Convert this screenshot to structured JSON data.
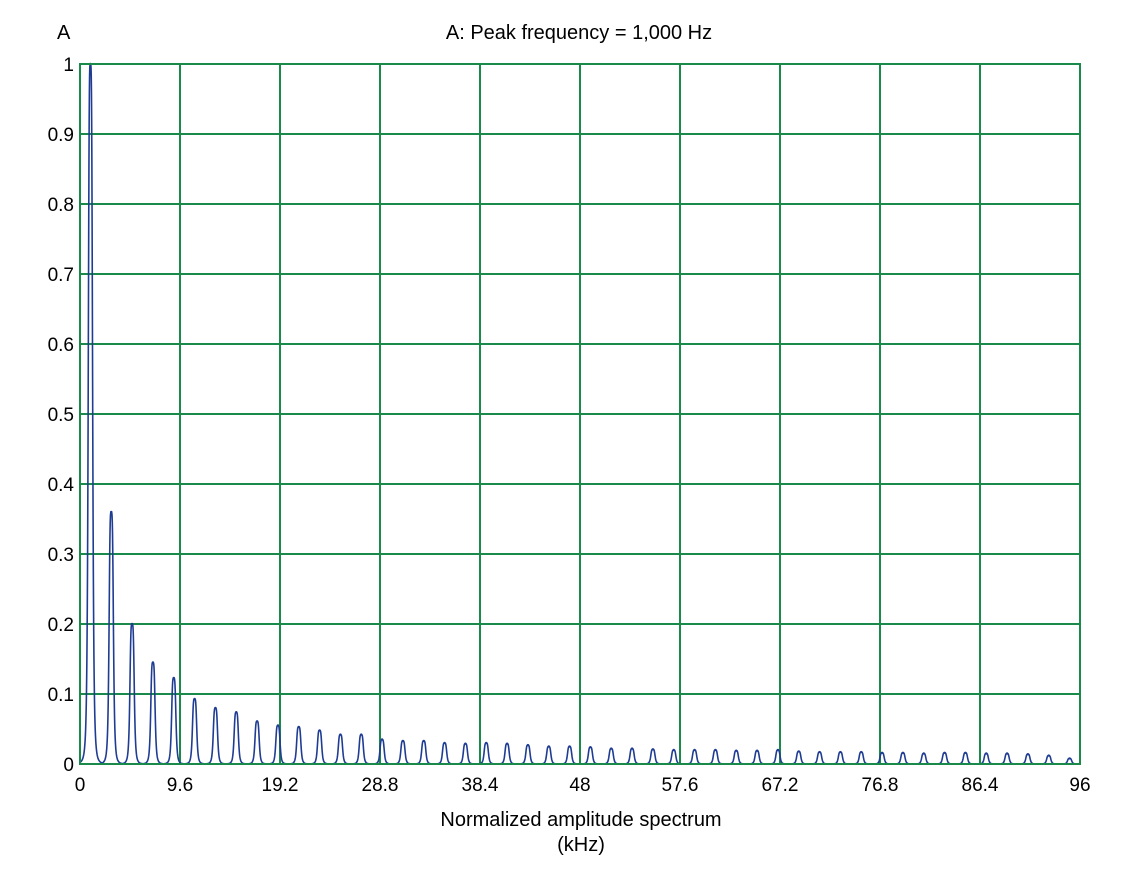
{
  "chart_data": {
    "type": "line",
    "title": "A: Peak frequency = 1,000 Hz",
    "panel_label": "A",
    "xlabel": "Normalized amplitude spectrum",
    "xlabel_unit": "(kHz)",
    "ylabel": "",
    "xlim": [
      0,
      96
    ],
    "ylim": [
      0,
      1
    ],
    "x_ticks": [
      "0",
      "9.6",
      "19.2",
      "28.8",
      "38.4",
      "48",
      "57.6",
      "67.2",
      "76.8",
      "86.4",
      "96"
    ],
    "y_ticks": [
      "0",
      "0.1",
      "0.2",
      "0.3",
      "0.4",
      "0.5",
      "0.6",
      "0.7",
      "0.8",
      "0.9",
      "1"
    ],
    "grid": true,
    "legend": "none",
    "colors": {
      "series": "#1f3c93",
      "grid": "#1a8a4a",
      "axis": "#1a8a4a"
    },
    "series": [
      {
        "peaks": [
          {
            "x": 1.0,
            "y": 1.0
          },
          {
            "x": 3.0,
            "y": 0.36
          },
          {
            "x": 5.0,
            "y": 0.2
          },
          {
            "x": 7.0,
            "y": 0.145
          },
          {
            "x": 9.0,
            "y": 0.123
          },
          {
            "x": 11.0,
            "y": 0.093
          },
          {
            "x": 13.0,
            "y": 0.08
          },
          {
            "x": 15.0,
            "y": 0.074
          },
          {
            "x": 17.0,
            "y": 0.061
          },
          {
            "x": 19.0,
            "y": 0.055
          },
          {
            "x": 21.0,
            "y": 0.053
          },
          {
            "x": 23.0,
            "y": 0.048
          },
          {
            "x": 25.0,
            "y": 0.042
          },
          {
            "x": 27.0,
            "y": 0.042
          },
          {
            "x": 29.0,
            "y": 0.035
          },
          {
            "x": 31.0,
            "y": 0.033
          },
          {
            "x": 33.0,
            "y": 0.033
          },
          {
            "x": 35.0,
            "y": 0.03
          },
          {
            "x": 37.0,
            "y": 0.029
          },
          {
            "x": 39.0,
            "y": 0.03
          },
          {
            "x": 41.0,
            "y": 0.029
          },
          {
            "x": 43.0,
            "y": 0.027
          },
          {
            "x": 45.0,
            "y": 0.025
          },
          {
            "x": 47.0,
            "y": 0.025
          },
          {
            "x": 49.0,
            "y": 0.024
          },
          {
            "x": 51.0,
            "y": 0.022
          },
          {
            "x": 53.0,
            "y": 0.022
          },
          {
            "x": 55.0,
            "y": 0.021
          },
          {
            "x": 57.0,
            "y": 0.02
          },
          {
            "x": 59.0,
            "y": 0.02
          },
          {
            "x": 61.0,
            "y": 0.02
          },
          {
            "x": 63.0,
            "y": 0.019
          },
          {
            "x": 65.0,
            "y": 0.019
          },
          {
            "x": 67.0,
            "y": 0.02
          },
          {
            "x": 69.0,
            "y": 0.018
          },
          {
            "x": 71.0,
            "y": 0.017
          },
          {
            "x": 73.0,
            "y": 0.017
          },
          {
            "x": 75.0,
            "y": 0.017
          },
          {
            "x": 77.0,
            "y": 0.016
          },
          {
            "x": 79.0,
            "y": 0.016
          },
          {
            "x": 81.0,
            "y": 0.015
          },
          {
            "x": 83.0,
            "y": 0.016
          },
          {
            "x": 85.0,
            "y": 0.016
          },
          {
            "x": 87.0,
            "y": 0.015
          },
          {
            "x": 89.0,
            "y": 0.015
          },
          {
            "x": 91.0,
            "y": 0.014
          },
          {
            "x": 93.0,
            "y": 0.012
          },
          {
            "x": 95.0,
            "y": 0.008
          }
        ]
      }
    ]
  }
}
